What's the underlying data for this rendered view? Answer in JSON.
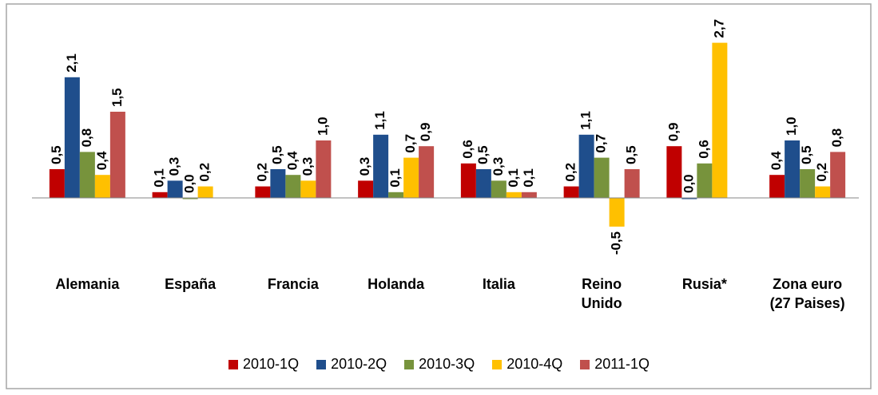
{
  "chart_data": {
    "type": "bar",
    "categories": [
      "Alemania",
      "España",
      "Francia",
      "Holanda",
      "Italia",
      "Reino\nUnido",
      "Rusia*",
      "Zona euro\n(27 Paises)"
    ],
    "ylim": [
      -1,
      3
    ],
    "legend": "bottom",
    "series": [
      {
        "name": "2010-1Q",
        "color": "#c00000",
        "values": [
          0.5,
          0.1,
          0.2,
          0.3,
          0.6,
          0.2,
          0.9,
          0.4
        ],
        "value_labels": [
          "0,5",
          "0,1",
          "0,2",
          "0,3",
          "0,6",
          "0,2",
          "0,9",
          "0,4"
        ]
      },
      {
        "name": "2010-2Q",
        "color": "#1f4e8c",
        "values": [
          2.1,
          0.3,
          0.5,
          1.1,
          0.5,
          1.1,
          0.0,
          1.0
        ],
        "value_labels": [
          "2,1",
          "0,3",
          "0,5",
          "1,1",
          "0,5",
          "1,1",
          "0,0",
          "1,0"
        ]
      },
      {
        "name": "2010-3Q",
        "color": "#77933c",
        "values": [
          0.8,
          0.0,
          0.4,
          0.1,
          0.3,
          0.7,
          0.6,
          0.5
        ],
        "value_labels": [
          "0,8",
          "0,0",
          "0,4",
          "0,1",
          "0,3",
          "0,7",
          "0,6",
          "0,5"
        ]
      },
      {
        "name": "2010-4Q",
        "color": "#ffc000",
        "values": [
          0.4,
          0.2,
          0.3,
          0.7,
          0.1,
          -0.5,
          2.7,
          0.2
        ],
        "value_labels": [
          "0,4",
          "0,2",
          "0,3",
          "0,7",
          "0,1",
          "-0,5",
          "2,7",
          "0,2"
        ]
      },
      {
        "name": "2011-1Q",
        "color": "#c0504d",
        "values": [
          1.5,
          null,
          1.0,
          0.9,
          0.1,
          0.5,
          null,
          0.8
        ],
        "value_labels": [
          "1,5",
          null,
          "1,0",
          "0,9",
          "0,1",
          "0,5",
          null,
          "0,8"
        ]
      }
    ]
  }
}
